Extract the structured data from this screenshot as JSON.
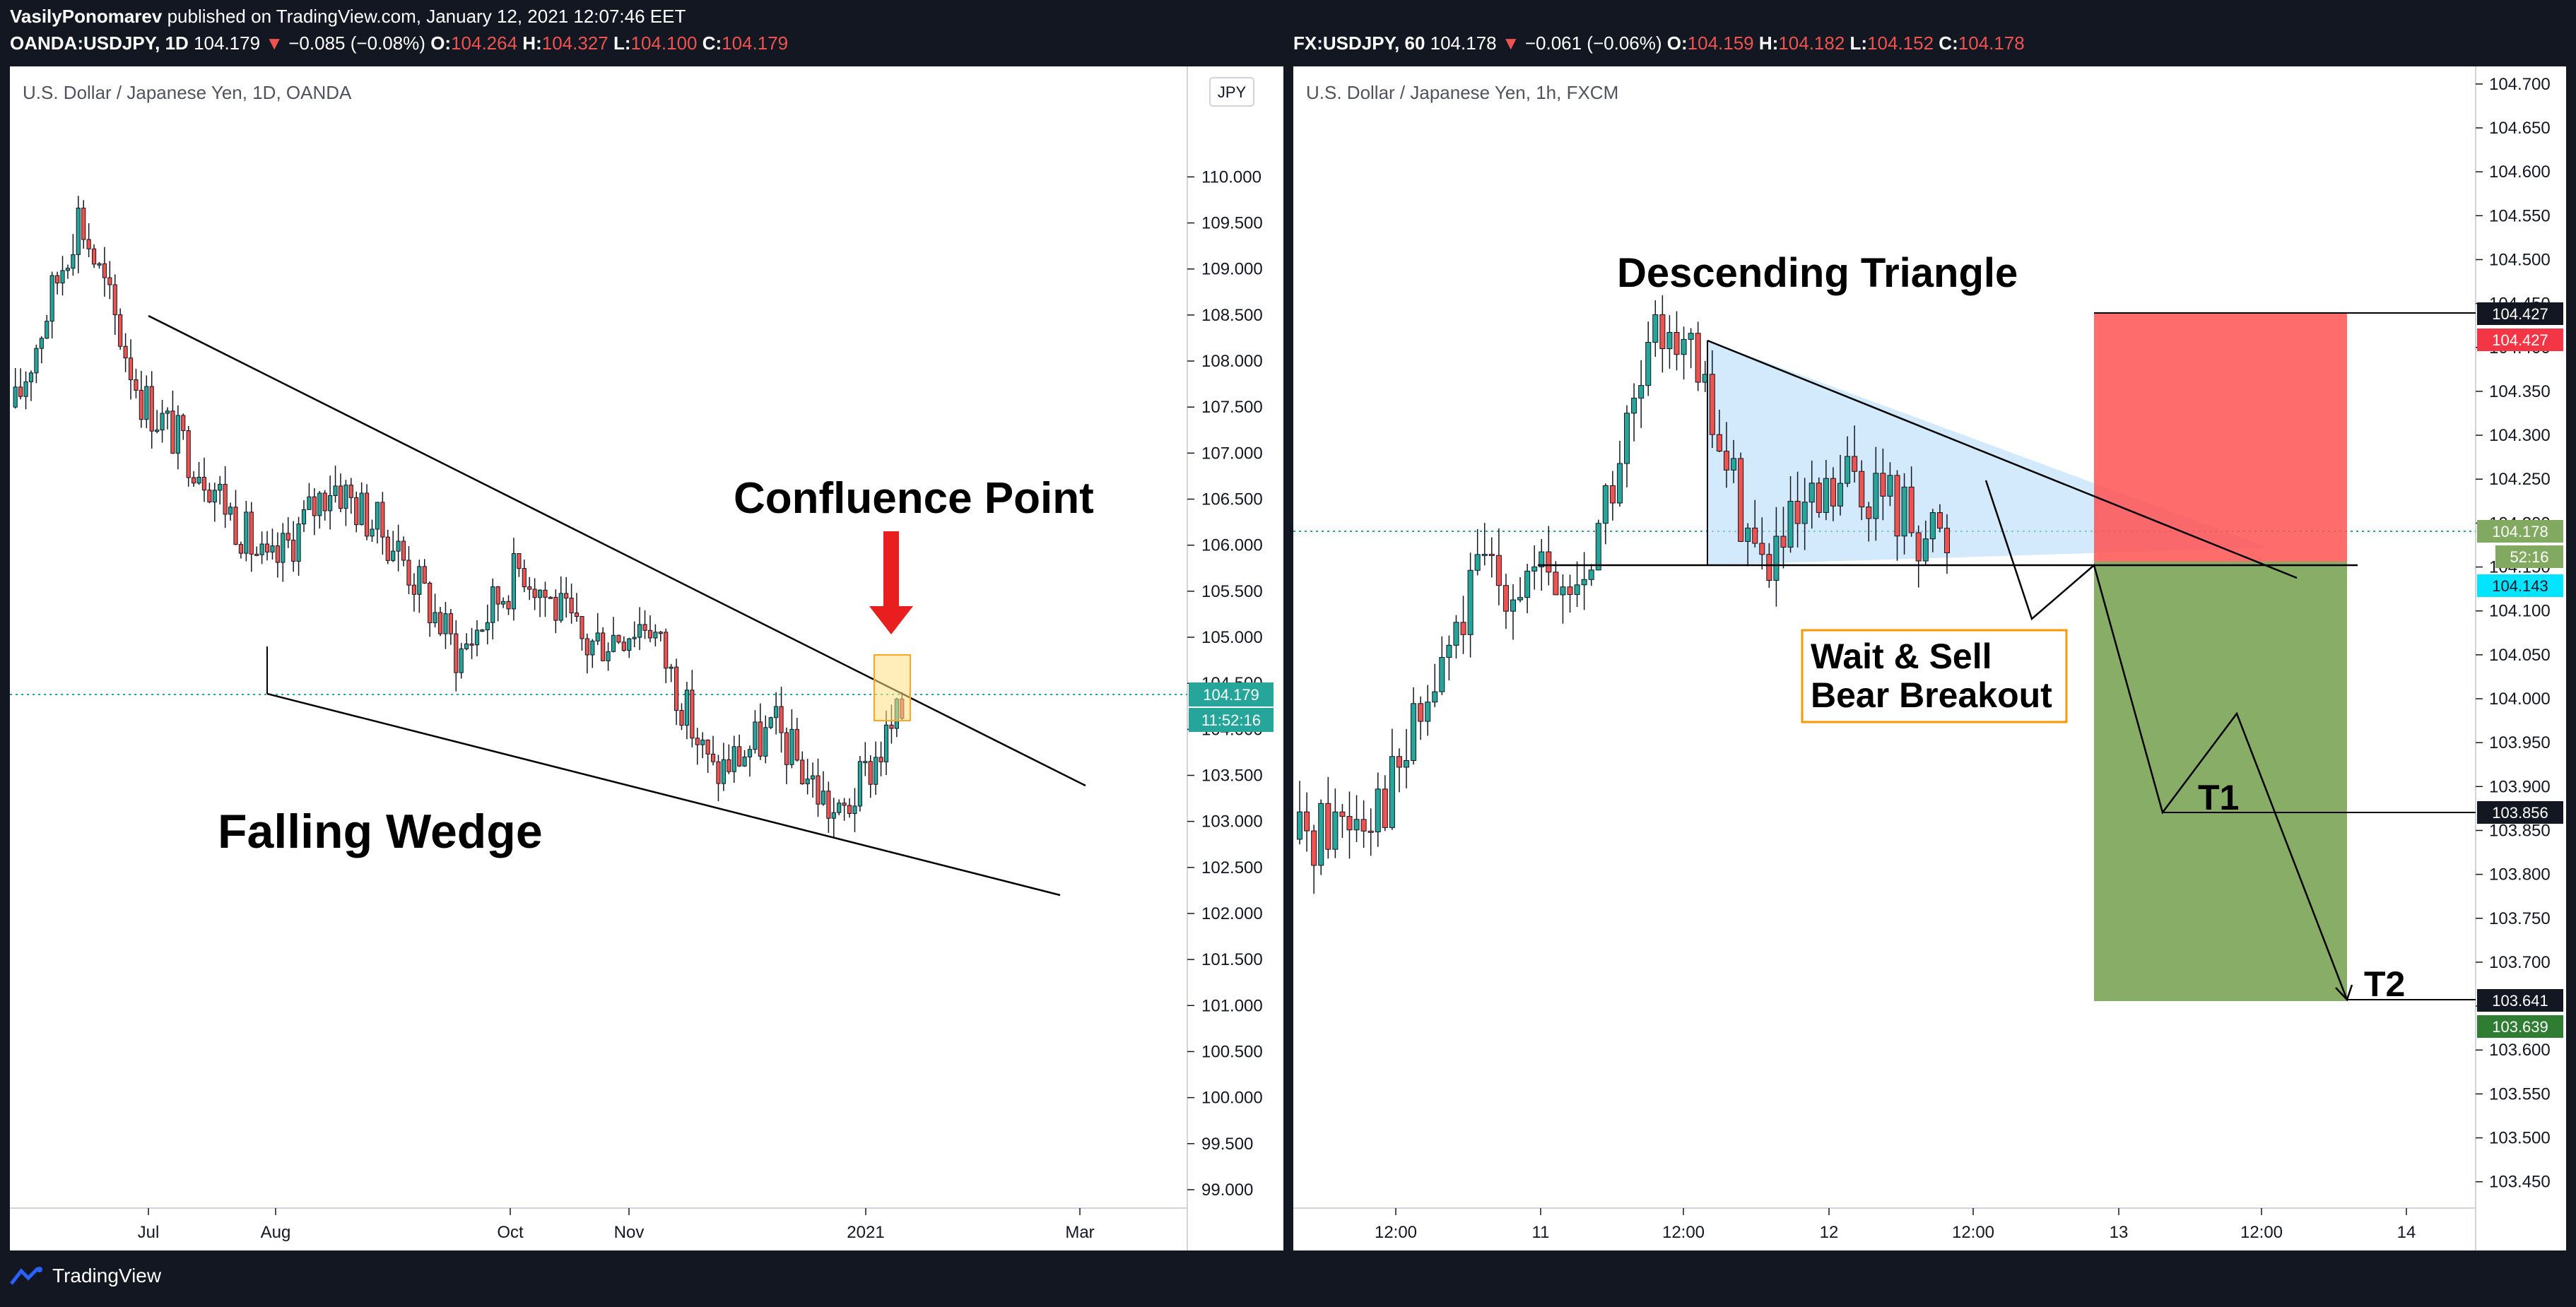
{
  "publish": {
    "author": "VasilyPonomarev",
    "text": "published on TradingView.com, January 12, 2021 12:07:46 EET"
  },
  "left": {
    "symbol": "OANDA:USDJPY, 1D",
    "last": "104.179",
    "change": "−0.085 (−0.08%)",
    "o": "104.264",
    "h": "104.327",
    "l": "104.100",
    "c": "104.179",
    "title": "U.S. Dollar / Japanese Yen, 1D, OANDA",
    "currency": "JPY",
    "price_tag": "104.179",
    "countdown": "11:52:16",
    "annotation_main": "Falling Wedge",
    "annotation_point": "Confluence Point"
  },
  "right": {
    "symbol": "FX:USDJPY, 60",
    "last": "104.178",
    "change": "−0.061 (−0.06%)",
    "o": "104.159",
    "h": "104.182",
    "l": "104.152",
    "c": "104.178",
    "title": "U.S. Dollar / Japanese Yen, 1h, FXCM",
    "annotation_main": "Descending Triangle",
    "box_line1": "Wait & Sell",
    "box_line2": "Bear Breakout",
    "t1": "T1",
    "t2": "T2",
    "tags": {
      "stop1": "104.427",
      "stop2": "104.427",
      "last": "104.178",
      "countdown": "52:16",
      "entry": "104.143",
      "t1": "103.856",
      "t2a": "103.641",
      "t2b": "103.639"
    }
  },
  "footer": {
    "brand": "TradingView"
  },
  "colors": {
    "bg": "#131722",
    "chart_bg": "#ffffff",
    "up": "#26a69a",
    "down": "#ef5350",
    "teal_tag": "#26a69a"
  },
  "chart_data": [
    {
      "type": "line",
      "title": "U.S. Dollar / Japanese Yen, 1D, OANDA",
      "xlabel": "",
      "ylabel": "",
      "x_ticks": [
        "Jul",
        "Aug",
        "Oct",
        "Nov",
        "2021",
        "Mar"
      ],
      "y_ticks": [
        "99.000",
        "99.500",
        "100.000",
        "100.500",
        "101.000",
        "101.500",
        "102.000",
        "102.500",
        "103.000",
        "103.500",
        "104.000",
        "104.500",
        "105.000",
        "105.500",
        "106.000",
        "106.500",
        "107.000",
        "107.500",
        "108.000",
        "108.500",
        "109.000",
        "109.500",
        "110.000"
      ],
      "ylim": [
        98.8,
        111.2
      ],
      "series": [
        {
          "name": "",
          "x": [
            "Jun",
            "Jun",
            "Jul",
            "Jul",
            "Aug",
            "Aug",
            "Sep",
            "Sep",
            "Oct",
            "Oct",
            "Nov",
            "Nov",
            "Dec",
            "Dec",
            "Jan"
          ],
          "values": [
            107.5,
            109.6,
            107.6,
            106.8,
            105.7,
            106.7,
            106.0,
            104.8,
            105.8,
            104.9,
            105.2,
            103.5,
            104.0,
            103.0,
            104.18
          ]
        }
      ],
      "annotations": [
        "Falling Wedge",
        "Confluence Point"
      ]
    },
    {
      "type": "line",
      "title": "U.S. Dollar / Japanese Yen, 1h, FXCM",
      "xlabel": "",
      "ylabel": "",
      "x_ticks": [
        "12:00",
        "11",
        "12:00",
        "12",
        "12:00",
        "13",
        "12:00",
        "14"
      ],
      "y_ticks": [
        "103.450",
        "103.500",
        "103.550",
        "103.600",
        "103.650",
        "103.700",
        "103.750",
        "103.800",
        "103.850",
        "103.900",
        "103.950",
        "104.000",
        "104.050",
        "104.100",
        "104.150",
        "104.200",
        "104.250",
        "104.300",
        "104.350",
        "104.400",
        "104.450",
        "104.500",
        "104.550",
        "104.600",
        "104.650",
        "104.700"
      ],
      "ylim": [
        103.42,
        104.72
      ],
      "series": [
        {
          "name": "",
          "x": [
            "10 12:00",
            "11 00:00",
            "11 06:00",
            "11 12:00",
            "11 18:00",
            "12 00:00",
            "12 06:00",
            "12 10:00"
          ],
          "values": [
            103.84,
            103.9,
            104.15,
            104.12,
            104.45,
            104.15,
            104.25,
            104.178
          ]
        }
      ],
      "levels": {
        "stop": 104.427,
        "entry": 104.143,
        "t1": 103.856,
        "t2": 103.641
      },
      "annotations": [
        "Descending Triangle",
        "Wait & Sell Bear Breakout",
        "T1",
        "T2"
      ]
    }
  ]
}
